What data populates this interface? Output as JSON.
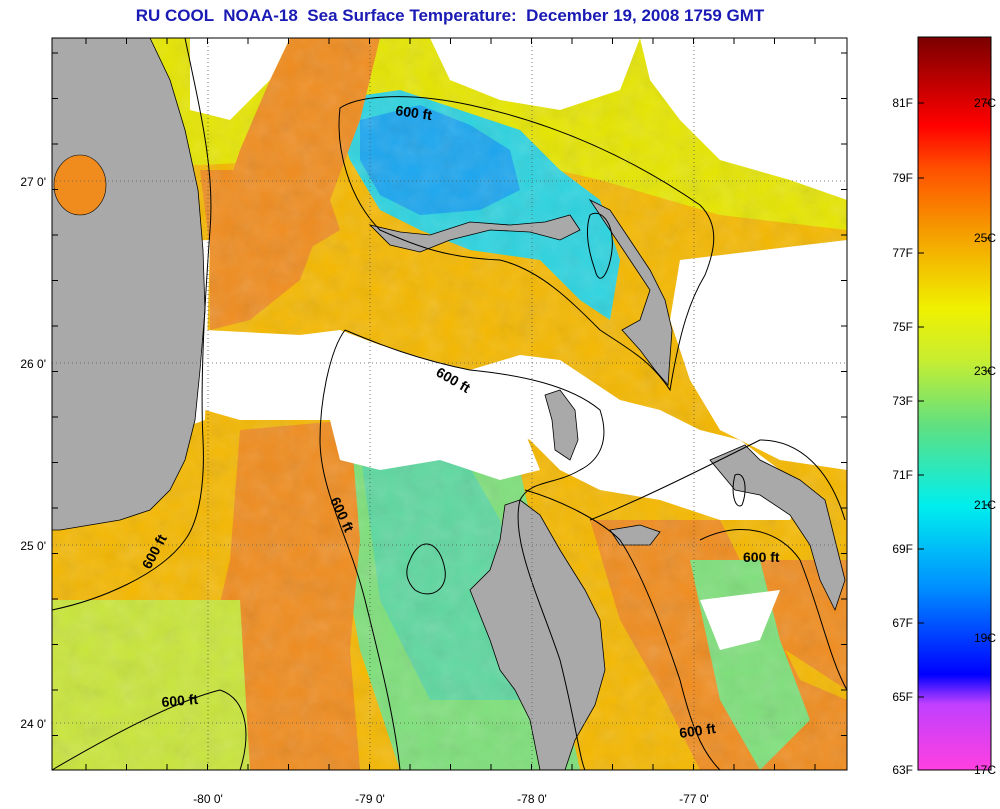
{
  "title": "RU COOL  NOAA-18  Sea Surface Temperature:  December 19, 2008 1759 GMT",
  "map": {
    "lon_ticks": [
      "-80 0'",
      "-79 0'",
      "-78 0'",
      "-77 0'"
    ],
    "lat_ticks": [
      "27 0'",
      "26 0'",
      "25 0'",
      "24 0'"
    ],
    "contour_labels": [
      "600 ft",
      "600 ft",
      "600 ft",
      "600 ft",
      "600 ft",
      "600 ft"
    ],
    "colors": {
      "land": "#a9a9a9",
      "cloud": "#ffffff",
      "contour": "#000000"
    }
  },
  "colorbar": {
    "fahrenheit": [
      "81F",
      "79F",
      "77F",
      "75F",
      "73F",
      "71F",
      "69F",
      "67F",
      "65F",
      "63F"
    ],
    "celsius": [
      "27C",
      "25C",
      "23C",
      "21C",
      "19C",
      "17C"
    ],
    "range_c": [
      17,
      28.5
    ]
  }
}
